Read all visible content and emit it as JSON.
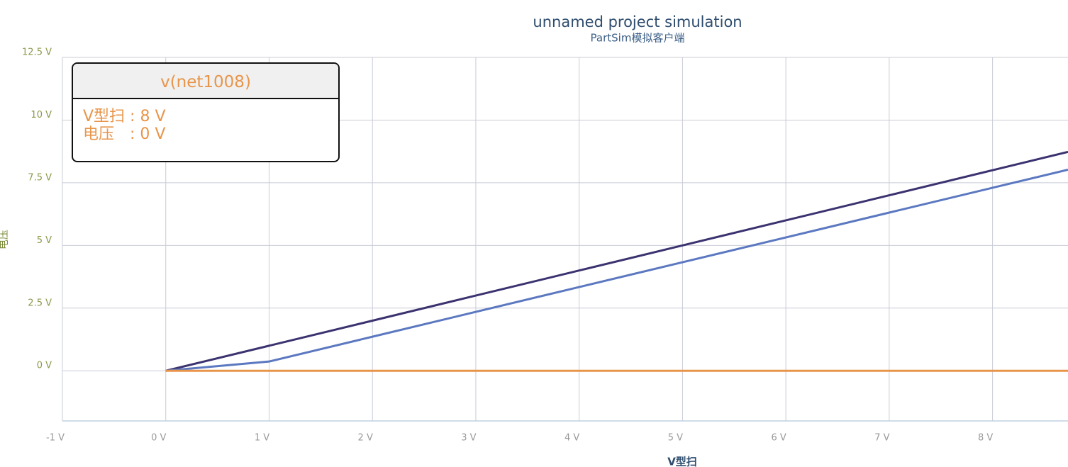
{
  "chart_data": {
    "type": "line",
    "title": "unnamed project simulation",
    "subtitle": "PartSim模拟客户端",
    "x_label": "V型扫",
    "y_label": "电压",
    "x": [
      0,
      1,
      2,
      3,
      4,
      5,
      6,
      7,
      8,
      8.73
    ],
    "series": [
      {
        "color": "#3b3370",
        "values": [
          0,
          1,
          2,
          3,
          4,
          5,
          6,
          7,
          8,
          8.73
        ]
      },
      {
        "color": "#5b78c0",
        "values": [
          0,
          0.37,
          1.36,
          2.35,
          3.34,
          4.33,
          5.32,
          6.31,
          7.3,
          8.02
        ]
      },
      {
        "color": "#e8954a",
        "values": [
          0,
          0,
          0,
          0,
          0,
          0,
          0,
          0,
          0,
          0
        ]
      }
    ],
    "xlim": [
      -1,
      8.73
    ],
    "ylim": [
      -2,
      12.5
    ],
    "xticks": [
      {
        "value": -1,
        "label": "-1 V"
      },
      {
        "value": 0,
        "label": "0 V"
      },
      {
        "value": 1,
        "label": "1 V"
      },
      {
        "value": 2,
        "label": "2 V"
      },
      {
        "value": 3,
        "label": "3 V"
      },
      {
        "value": 4,
        "label": "4 V"
      },
      {
        "value": 5,
        "label": "5 V"
      },
      {
        "value": 6,
        "label": "6 V"
      },
      {
        "value": 7,
        "label": "7 V"
      },
      {
        "value": 8,
        "label": "8 V"
      }
    ],
    "yticks": [
      {
        "value": 0,
        "label": "0 V"
      },
      {
        "value": 2.5,
        "label": "2.5 V"
      },
      {
        "value": 5,
        "label": "5 V"
      },
      {
        "value": 7.5,
        "label": "7.5 V"
      },
      {
        "value": 10,
        "label": "10 V"
      },
      {
        "value": 12.5,
        "label": "12.5 V"
      }
    ],
    "grid": true,
    "tooltip": {
      "title": "v(net1008)",
      "rows": [
        "V型扫 : 8 V",
        "电压　: 0 V"
      ]
    }
  }
}
